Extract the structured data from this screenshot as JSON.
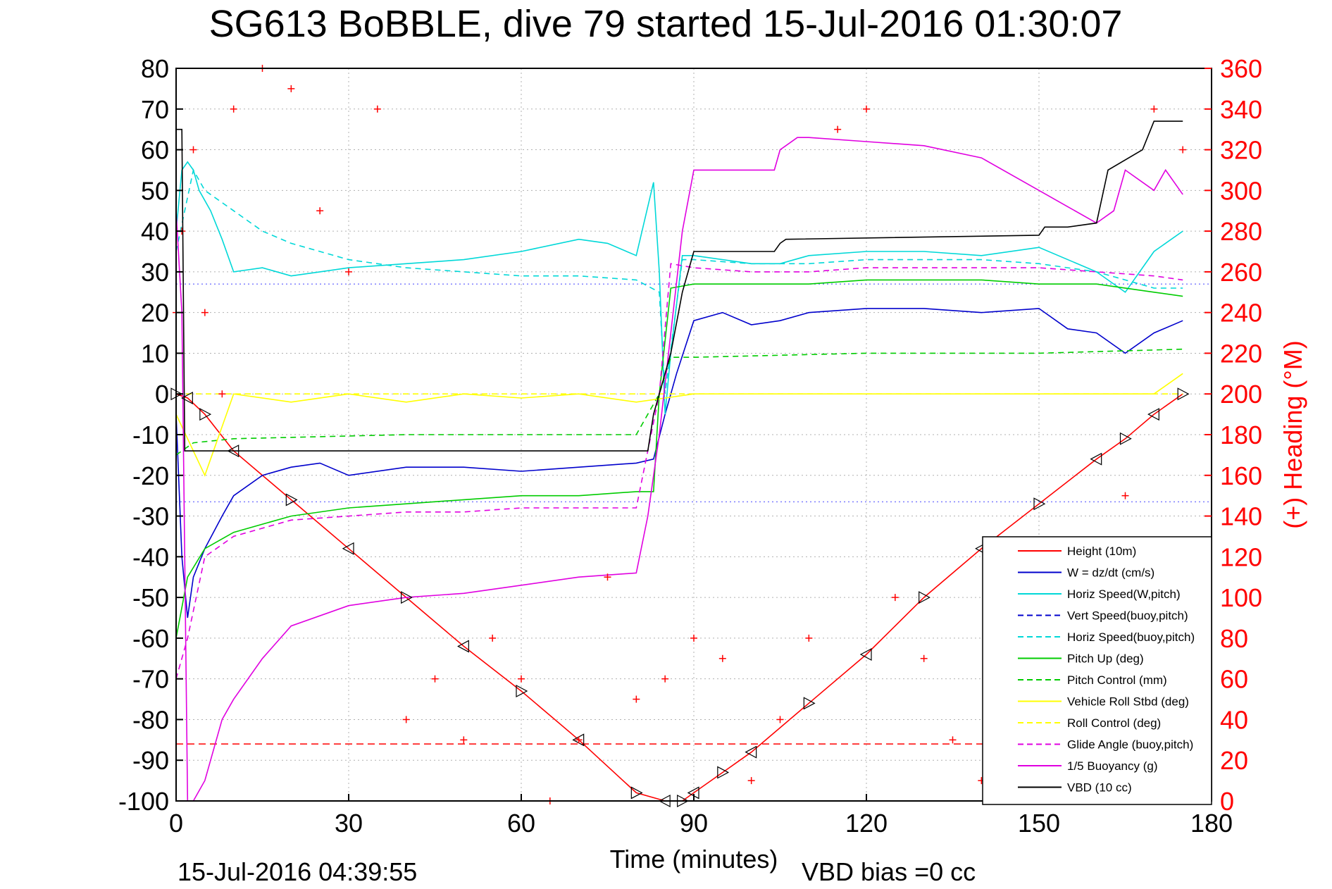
{
  "title": "SG613 BoBBLE, dive 79 started 15-Jul-2016 01:30:07",
  "footer_left": "15-Jul-2016 04:39:55",
  "footer_right": "VBD bias =0 cc",
  "chart_data": {
    "type": "line",
    "xlabel": "Time (minutes)",
    "ylabel": "",
    "y2label": "(+) Heading (°M)",
    "xlim": [
      0,
      180
    ],
    "ylim": [
      -100,
      80
    ],
    "y2lim": [
      0,
      360
    ],
    "xticks": [
      0,
      30,
      60,
      90,
      120,
      150,
      180
    ],
    "yticks": [
      80,
      70,
      60,
      50,
      40,
      30,
      20,
      10,
      0,
      -10,
      -20,
      -30,
      -40,
      -50,
      -60,
      -70,
      -80,
      -90,
      -100
    ],
    "y2ticks": [
      360,
      340,
      320,
      300,
      280,
      260,
      240,
      220,
      200,
      180,
      160,
      140,
      120,
      100,
      80,
      60,
      40,
      20,
      0
    ],
    "grid": true,
    "legend_position": "bottom-right",
    "colors": {
      "height": "#ff0000",
      "w": "#0000cc",
      "hspeed": "#00d8d8",
      "pitch": "#00cc00",
      "roll": "#ffff00",
      "glide": "#e000e0",
      "buoy": "#e000e0",
      "vbd": "#000000",
      "heading": "#ff0000"
    },
    "legend": [
      {
        "label": "Height (10m)",
        "color": "#ff0000",
        "dash": false
      },
      {
        "label": "W = dz/dt (cm/s)",
        "color": "#0000cc",
        "dash": false
      },
      {
        "label": "Horiz Speed(W,pitch)",
        "color": "#00d8d8",
        "dash": false
      },
      {
        "label": "Vert Speed(buoy,pitch)",
        "color": "#0000cc",
        "dash": true
      },
      {
        "label": "Horiz Speed(buoy,pitch)",
        "color": "#00d8d8",
        "dash": true
      },
      {
        "label": "Pitch Up (deg)",
        "color": "#00cc00",
        "dash": false
      },
      {
        "label": "Pitch Control (mm)",
        "color": "#00cc00",
        "dash": true
      },
      {
        "label": "Vehicle Roll Stbd (deg)",
        "color": "#ffff00",
        "dash": false
      },
      {
        "label": "Roll Control (deg)",
        "color": "#ffff00",
        "dash": true
      },
      {
        "label": "Glide Angle (buoy,pitch)",
        "color": "#e000e0",
        "dash": true
      },
      {
        "label": "1/5 Buoyancy (g)",
        "color": "#e000e0",
        "dash": false
      },
      {
        "label": "VBD (10 cc)",
        "color": "#000000",
        "dash": false
      }
    ],
    "series": [
      {
        "key": "height",
        "name": "Height (10m)",
        "color": "#ff0000",
        "dash": false,
        "axis": "left",
        "markers": "triangles",
        "x": [
          0,
          2,
          5,
          10,
          20,
          30,
          40,
          50,
          60,
          70,
          80,
          85,
          88,
          90,
          95,
          100,
          110,
          120,
          130,
          140,
          150,
          160,
          165,
          170,
          175
        ],
        "y": [
          0,
          -1,
          -5,
          -14,
          -26,
          -38,
          -50,
          -62,
          -73,
          -85,
          -98,
          -100,
          -100,
          -98,
          -93,
          -88,
          -76,
          -64,
          -50,
          -38,
          -27,
          -16,
          -11,
          -5,
          0
        ]
      },
      {
        "key": "w",
        "name": "W = dz/dt (cm/s)",
        "color": "#0000cc",
        "dash": false,
        "axis": "left",
        "x": [
          0,
          1,
          2,
          3,
          5,
          8,
          10,
          15,
          20,
          25,
          30,
          40,
          50,
          60,
          70,
          80,
          83,
          85,
          87,
          90,
          95,
          100,
          105,
          110,
          120,
          130,
          140,
          150,
          155,
          160,
          165,
          170,
          175
        ],
        "y": [
          -5,
          -40,
          -55,
          -45,
          -38,
          -30,
          -25,
          -20,
          -18,
          -17,
          -20,
          -18,
          -18,
          -19,
          -18,
          -17,
          -16,
          -5,
          5,
          18,
          20,
          17,
          18,
          20,
          21,
          21,
          20,
          21,
          16,
          15,
          10,
          15,
          18
        ]
      },
      {
        "key": "hspeed",
        "name": "Horiz Speed(W,pitch)",
        "color": "#00d8d8",
        "dash": false,
        "axis": "left",
        "x": [
          0,
          1,
          2,
          3,
          4,
          6,
          8,
          10,
          15,
          20,
          25,
          30,
          40,
          50,
          60,
          70,
          75,
          80,
          83,
          84,
          85,
          86,
          88,
          90,
          100,
          105,
          110,
          120,
          130,
          140,
          150,
          160,
          165,
          170,
          175
        ],
        "y": [
          40,
          55,
          57,
          55,
          50,
          45,
          38,
          30,
          31,
          29,
          30,
          31,
          32,
          33,
          35,
          38,
          37,
          34,
          52,
          30,
          -5,
          10,
          34,
          34,
          32,
          32,
          34,
          35,
          35,
          34,
          36,
          30,
          25,
          35,
          40
        ]
      },
      {
        "key": "hspeed_buoy",
        "name": "Horiz Speed(buoy,pitch)",
        "color": "#00d8d8",
        "dash": true,
        "axis": "left",
        "x": [
          0,
          3,
          5,
          10,
          15,
          20,
          30,
          40,
          50,
          60,
          70,
          80,
          84,
          85,
          88,
          90,
          100,
          110,
          120,
          130,
          140,
          150,
          160,
          165,
          170,
          175
        ],
        "y": [
          35,
          55,
          50,
          45,
          40,
          37,
          33,
          31,
          30,
          29,
          29,
          28,
          25,
          0,
          33,
          33,
          32,
          32,
          33,
          33,
          33,
          32,
          30,
          28,
          26,
          26
        ]
      },
      {
        "key": "pitch",
        "name": "Pitch Up (deg)",
        "color": "#00cc00",
        "dash": false,
        "axis": "left",
        "x": [
          0,
          2,
          5,
          10,
          20,
          30,
          40,
          50,
          60,
          70,
          80,
          83,
          84,
          86,
          90,
          100,
          110,
          120,
          130,
          140,
          150,
          160,
          170,
          175
        ],
        "y": [
          -60,
          -45,
          -38,
          -34,
          -30,
          -28,
          -27,
          -26,
          -25,
          -25,
          -24,
          -24,
          0,
          26,
          27,
          27,
          27,
          28,
          28,
          28,
          27,
          27,
          25,
          24
        ]
      },
      {
        "key": "pitch_ctl",
        "name": "Pitch Control (mm)",
        "color": "#00cc00",
        "dash": true,
        "axis": "left",
        "x": [
          0,
          3,
          10,
          40,
          80,
          84,
          86,
          90,
          120,
          150,
          175
        ],
        "y": [
          -15,
          -12,
          -11,
          -10,
          -10,
          0,
          9,
          9,
          10,
          10,
          11
        ]
      },
      {
        "key": "roll",
        "name": "Vehicle Roll Stbd (deg)",
        "color": "#ffff00",
        "dash": false,
        "axis": "left",
        "x": [
          0,
          5,
          10,
          20,
          30,
          40,
          50,
          60,
          70,
          80,
          85,
          90,
          100,
          110,
          120,
          130,
          140,
          150,
          160,
          170,
          175
        ],
        "y": [
          -5,
          -20,
          0,
          -2,
          0,
          -2,
          0,
          -1,
          0,
          -2,
          -1,
          0,
          0,
          0,
          0,
          0,
          0,
          0,
          0,
          0,
          5
        ]
      },
      {
        "key": "roll_ctl",
        "name": "Roll Control (deg)",
        "color": "#ffff00",
        "dash": true,
        "axis": "left",
        "x": [
          0,
          175
        ],
        "y": [
          0,
          0
        ]
      },
      {
        "key": "glide",
        "name": "Glide Angle (buoy,pitch)",
        "color": "#e000e0",
        "dash": true,
        "axis": "left",
        "x": [
          0,
          2,
          5,
          10,
          20,
          30,
          40,
          50,
          60,
          70,
          80,
          84,
          86,
          90,
          100,
          110,
          120,
          130,
          140,
          150,
          160,
          170,
          175
        ],
        "y": [
          -70,
          -60,
          -40,
          -35,
          -31,
          -30,
          -29,
          -29,
          -28,
          -28,
          -28,
          0,
          32,
          31,
          30,
          30,
          31,
          31,
          31,
          31,
          30,
          29,
          28
        ]
      },
      {
        "key": "buoy",
        "name": "1/5 Buoyancy (g)",
        "color": "#e000e0",
        "dash": false,
        "axis": "left",
        "x": [
          0,
          1,
          2,
          3,
          5,
          8,
          10,
          15,
          20,
          30,
          40,
          50,
          60,
          70,
          80,
          82,
          84,
          88,
          90,
          95,
          104,
          105,
          108,
          110,
          120,
          130,
          140,
          150,
          155,
          160,
          163,
          165,
          170,
          172,
          175
        ],
        "y": [
          45,
          20,
          -100,
          -100,
          -95,
          -80,
          -75,
          -65,
          -57,
          -52,
          -50,
          -49,
          -47,
          -45,
          -44,
          -30,
          -10,
          40,
          55,
          55,
          55,
          60,
          63,
          63,
          62,
          61,
          58,
          50,
          46,
          42,
          45,
          55,
          50,
          55,
          49
        ]
      },
      {
        "key": "vbd",
        "name": "VBD (10 cc)",
        "color": "#000000",
        "dash": false,
        "axis": "left",
        "x": [
          0,
          1,
          1.5,
          2,
          3,
          10,
          30,
          60,
          80,
          82,
          83,
          84,
          86,
          88,
          90,
          92,
          104,
          105,
          106,
          150,
          151,
          155,
          160,
          162,
          168,
          170,
          175
        ],
        "y": [
          65,
          65,
          -14,
          -14,
          -14,
          -14,
          -14,
          -14,
          -14,
          -14,
          -5,
          0,
          10,
          25,
          35,
          35,
          35,
          37,
          38,
          39,
          41,
          41,
          42,
          55,
          60,
          67,
          67
        ]
      },
      {
        "key": "heading",
        "name": "(+) Heading (°M)",
        "color": "#ff0000",
        "dash": false,
        "axis": "right",
        "markers": "plus",
        "x": [
          0,
          1,
          3,
          5,
          8,
          10,
          15,
          20,
          25,
          30,
          35,
          40,
          45,
          50,
          55,
          60,
          65,
          70,
          75,
          80,
          85,
          90,
          95,
          100,
          105,
          110,
          115,
          120,
          125,
          130,
          135,
          140,
          145,
          150,
          155,
          160,
          165,
          170,
          175
        ],
        "y": [
          240,
          280,
          320,
          240,
          200,
          340,
          360,
          350,
          290,
          260,
          340,
          40,
          60,
          30,
          80,
          60,
          0,
          30,
          110,
          50,
          60,
          80,
          70,
          10,
          40,
          80,
          330,
          340,
          100,
          70,
          30,
          10,
          20,
          0,
          5,
          40,
          150,
          340,
          320
        ]
      }
    ],
    "reference_lines": [
      {
        "name": "upper-dotted",
        "axis": "left",
        "y": 27,
        "color": "#7f7fff",
        "style": "dotted"
      },
      {
        "name": "lower-dotted",
        "axis": "left",
        "y": -26.5,
        "color": "#7f7fff",
        "style": "dotted"
      },
      {
        "name": "red-dashed",
        "axis": "left",
        "y": -86,
        "color": "#ff0000",
        "style": "dashed"
      }
    ]
  }
}
